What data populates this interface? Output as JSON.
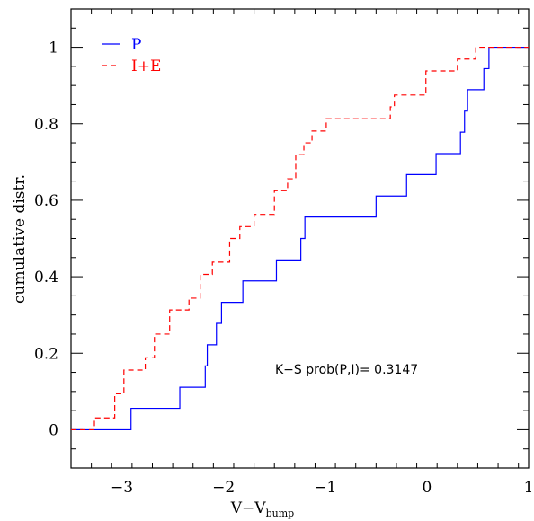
{
  "chart_data": {
    "type": "line",
    "title": "",
    "xlabel": "V−V",
    "xlabel_sub": "bump",
    "ylabel": "cumulative distr.",
    "xlim": [
      -3.5,
      1
    ],
    "ylim": [
      -0.1,
      1.1
    ],
    "xticks": [
      -3,
      -2,
      -1,
      0,
      1
    ],
    "xtick_labels": [
      "−3",
      "−2",
      "−1",
      "0",
      "1"
    ],
    "yticks": [
      0,
      0.2,
      0.4,
      0.6,
      0.8,
      1
    ],
    "ytick_labels": [
      "0",
      "0.2",
      "0.4",
      "0.6",
      "0.8",
      "1"
    ],
    "grid": false,
    "legend": "top-left",
    "annotation": "K−S prob(P,I)=  0.3147",
    "series": [
      {
        "name": "P",
        "style": "solid",
        "color": "#0000ff",
        "steps": [
          [
            -3.5,
            0
          ],
          [
            -2.91,
            0.056
          ],
          [
            -2.43,
            0.111
          ],
          [
            -2.18,
            0.167
          ],
          [
            -2.16,
            0.222
          ],
          [
            -2.07,
            0.278
          ],
          [
            -2.02,
            0.333
          ],
          [
            -1.81,
            0.389
          ],
          [
            -1.48,
            0.444
          ],
          [
            -1.24,
            0.5
          ],
          [
            -1.2,
            0.556
          ],
          [
            -0.5,
            0.611
          ],
          [
            -0.2,
            0.667
          ],
          [
            0.09,
            0.722
          ],
          [
            0.33,
            0.778
          ],
          [
            0.37,
            0.833
          ],
          [
            0.4,
            0.889
          ],
          [
            0.56,
            0.944
          ],
          [
            0.61,
            1.0
          ],
          [
            1.0,
            1.0
          ]
        ]
      },
      {
        "name": "I+E",
        "style": "dashed",
        "color": "#ff0000",
        "steps": [
          [
            -3.5,
            0
          ],
          [
            -3.27,
            0.031
          ],
          [
            -3.07,
            0.094
          ],
          [
            -2.98,
            0.156
          ],
          [
            -2.77,
            0.188
          ],
          [
            -2.68,
            0.25
          ],
          [
            -2.53,
            0.313
          ],
          [
            -2.34,
            0.344
          ],
          [
            -2.23,
            0.406
          ],
          [
            -2.11,
            0.438
          ],
          [
            -1.94,
            0.5
          ],
          [
            -1.84,
            0.531
          ],
          [
            -1.7,
            0.563
          ],
          [
            -1.5,
            0.625
          ],
          [
            -1.37,
            0.656
          ],
          [
            -1.29,
            0.719
          ],
          [
            -1.21,
            0.75
          ],
          [
            -1.13,
            0.781
          ],
          [
            -0.99,
            0.813
          ],
          [
            -0.36,
            0.844
          ],
          [
            -0.32,
            0.875
          ],
          [
            -0.01,
            0.938
          ],
          [
            0.3,
            0.969
          ],
          [
            0.48,
            1.0
          ],
          [
            1.0,
            1.0
          ]
        ]
      }
    ]
  }
}
